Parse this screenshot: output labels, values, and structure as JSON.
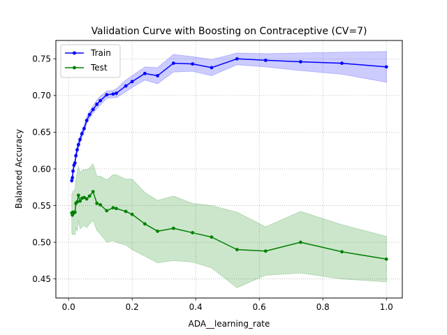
{
  "chart_data": {
    "type": "line",
    "title": "Validation Curve with Boosting on Contraceptive (CV=7)",
    "xlabel": "ADA__learning_rate",
    "ylabel": "Balanced Accuracy",
    "xlim": [
      -0.04,
      1.05
    ],
    "ylim": [
      0.424,
      0.775
    ],
    "xticks": [
      0.0,
      0.2,
      0.4,
      0.6,
      0.8,
      1.0
    ],
    "xtick_labels": [
      "0.0",
      "0.2",
      "0.4",
      "0.6",
      "0.8",
      "1.0"
    ],
    "yticks": [
      0.45,
      0.5,
      0.55,
      0.6,
      0.65,
      0.7,
      0.75
    ],
    "ytick_labels": [
      "0.45",
      "0.50",
      "0.55",
      "0.60",
      "0.65",
      "0.70",
      "0.75"
    ],
    "grid": true,
    "legend_position": "top-left",
    "x": [
      0.01,
      0.012,
      0.014,
      0.017,
      0.02,
      0.023,
      0.027,
      0.031,
      0.036,
      0.042,
      0.049,
      0.057,
      0.066,
      0.077,
      0.089,
      0.1,
      0.12,
      0.14,
      0.15,
      0.18,
      0.2,
      0.24,
      0.28,
      0.33,
      0.39,
      0.45,
      0.53,
      0.62,
      0.73,
      0.86,
      1.0
    ],
    "series": [
      {
        "name": "Train",
        "color": "#0000ff",
        "band_color": "#0000ff",
        "values": [
          0.584,
          0.588,
          0.597,
          0.605,
          0.608,
          0.618,
          0.626,
          0.633,
          0.64,
          0.648,
          0.655,
          0.666,
          0.674,
          0.681,
          0.688,
          0.693,
          0.701,
          0.702,
          0.703,
          0.713,
          0.719,
          0.73,
          0.727,
          0.744,
          0.743,
          0.738,
          0.75,
          0.748,
          0.746,
          0.744,
          0.739
        ],
        "lower": [
          0.58,
          0.584,
          0.593,
          0.601,
          0.603,
          0.613,
          0.621,
          0.628,
          0.635,
          0.643,
          0.65,
          0.661,
          0.669,
          0.676,
          0.682,
          0.687,
          0.696,
          0.697,
          0.697,
          0.705,
          0.711,
          0.721,
          0.716,
          0.732,
          0.733,
          0.727,
          0.742,
          0.739,
          0.734,
          0.729,
          0.718
        ],
        "upper": [
          0.588,
          0.592,
          0.601,
          0.609,
          0.613,
          0.623,
          0.631,
          0.638,
          0.645,
          0.653,
          0.66,
          0.671,
          0.679,
          0.686,
          0.694,
          0.699,
          0.706,
          0.707,
          0.709,
          0.721,
          0.727,
          0.739,
          0.738,
          0.756,
          0.753,
          0.749,
          0.758,
          0.757,
          0.758,
          0.759,
          0.76
        ]
      },
      {
        "name": "Test",
        "color": "#008000",
        "band_color": "#008000",
        "values": [
          0.54,
          0.537,
          0.541,
          0.54,
          0.541,
          0.553,
          0.555,
          0.564,
          0.556,
          0.56,
          0.561,
          0.559,
          0.563,
          0.569,
          0.553,
          0.551,
          0.543,
          0.547,
          0.546,
          0.542,
          0.538,
          0.525,
          0.515,
          0.519,
          0.513,
          0.507,
          0.49,
          0.488,
          0.5,
          0.487,
          0.477
        ],
        "lower": [
          0.513,
          0.51,
          0.512,
          0.511,
          0.51,
          0.52,
          0.515,
          0.53,
          0.518,
          0.521,
          0.523,
          0.52,
          0.525,
          0.53,
          0.516,
          0.511,
          0.5,
          0.502,
          0.5,
          0.496,
          0.49,
          0.481,
          0.472,
          0.475,
          0.473,
          0.465,
          0.438,
          0.455,
          0.458,
          0.45,
          0.446
        ],
        "upper": [
          0.566,
          0.566,
          0.57,
          0.57,
          0.572,
          0.585,
          0.595,
          0.604,
          0.594,
          0.598,
          0.599,
          0.599,
          0.601,
          0.607,
          0.59,
          0.59,
          0.585,
          0.592,
          0.592,
          0.586,
          0.586,
          0.568,
          0.557,
          0.563,
          0.553,
          0.55,
          0.541,
          0.521,
          0.542,
          0.524,
          0.508
        ]
      }
    ]
  }
}
